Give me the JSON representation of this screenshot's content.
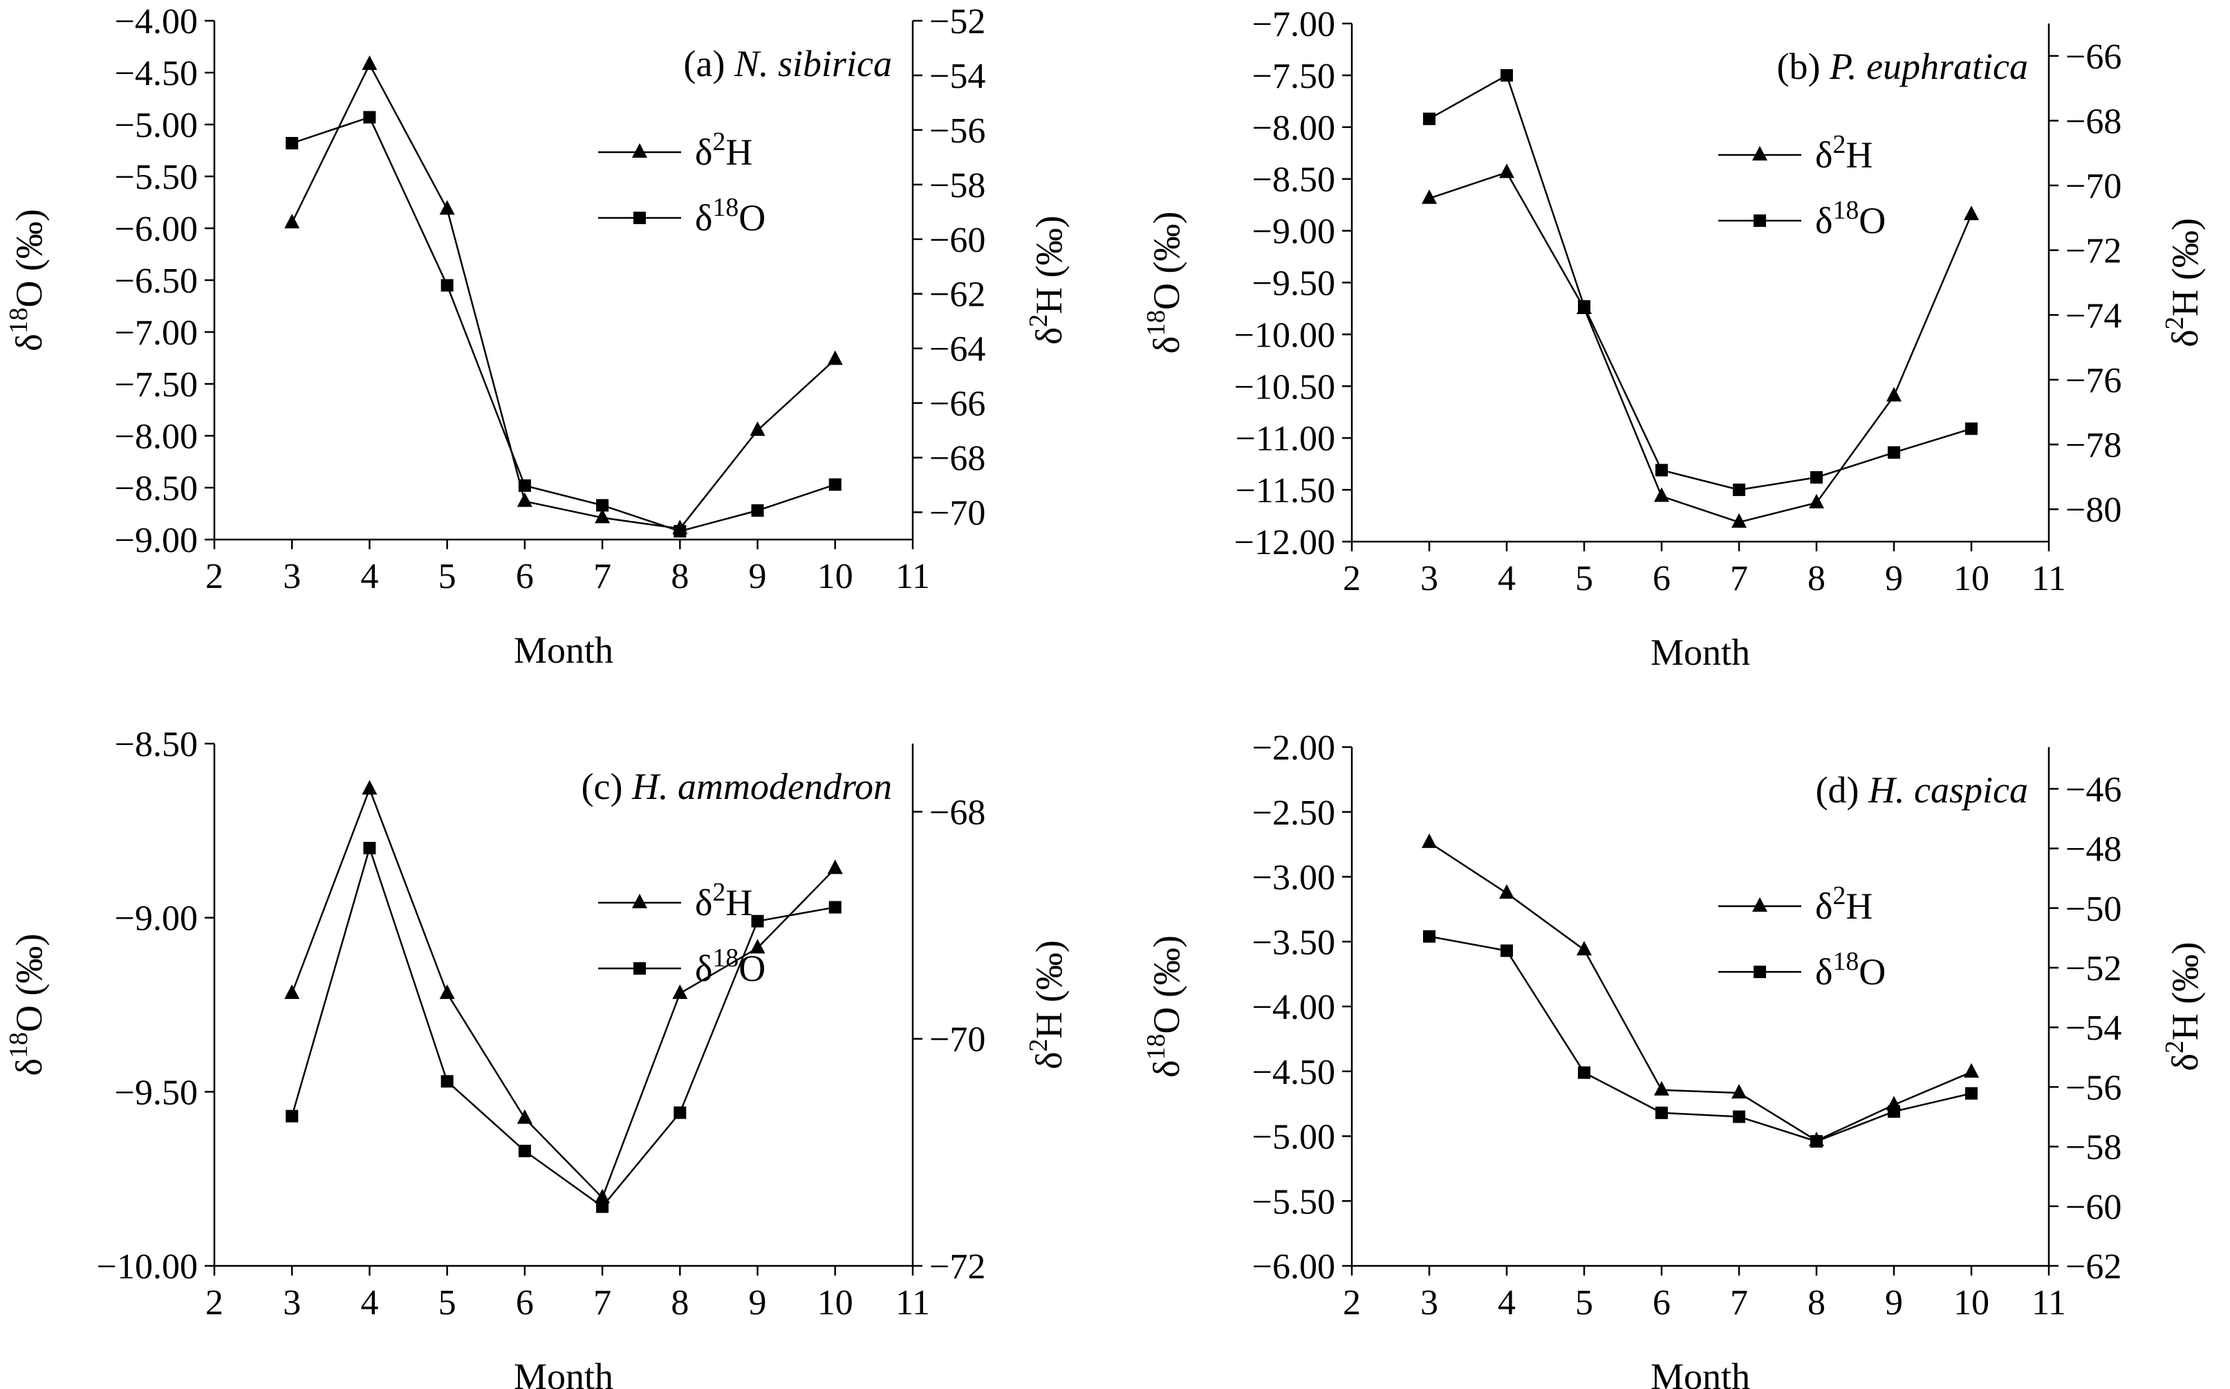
{
  "chart_data": [
    {
      "type": "line",
      "panel_label": "(a)",
      "species": "N. sibirica",
      "xlabel": "Month",
      "ylabel_left": "δ18O (‰)",
      "ylabel_right": "δ2H (‰)",
      "x": [
        3,
        4,
        5,
        6,
        7,
        8,
        9,
        10
      ],
      "xlim": [
        2,
        11
      ],
      "xticks": [
        2,
        3,
        4,
        5,
        6,
        7,
        8,
        9,
        10,
        11
      ],
      "ylim_left": [
        -9.0,
        -4.0
      ],
      "yticks_left": [
        "-4.00",
        "-4.50",
        "-5.00",
        "-5.50",
        "-6.00",
        "-6.50",
        "-7.00",
        "-7.50",
        "-8.00",
        "-8.50",
        "-9.00"
      ],
      "ylim_right": [
        -71,
        -52
      ],
      "yticks_right": [
        "-52",
        "-54",
        "-56",
        "-58",
        "-60",
        "-62",
        "-64",
        "-66",
        "-68",
        "-70"
      ],
      "series": [
        {
          "name": "δ2H",
          "marker": "triangle",
          "axis": "right",
          "values": [
            -59.4,
            -53.6,
            -58.9,
            -69.6,
            -70.2,
            -70.6,
            -67.0,
            -64.4
          ]
        },
        {
          "name": "δ18O",
          "marker": "square",
          "axis": "left",
          "values": [
            -5.18,
            -4.93,
            -6.55,
            -8.48,
            -8.67,
            -8.92,
            -8.72,
            -8.47
          ]
        }
      ]
    },
    {
      "type": "line",
      "panel_label": "(b)",
      "species": "P. euphratica",
      "xlabel": "Month",
      "ylabel_left": "δ18O (‰)",
      "ylabel_right": "δ2H (‰)",
      "x": [
        3,
        4,
        5,
        6,
        7,
        8,
        9,
        10
      ],
      "xlim": [
        2,
        11
      ],
      "xticks": [
        2,
        3,
        4,
        5,
        6,
        7,
        8,
        9,
        10,
        11
      ],
      "ylim_left": [
        -12.0,
        -7.0
      ],
      "yticks_left": [
        "-7.00",
        "-7.50",
        "-8.00",
        "-8.50",
        "-9.00",
        "-9.50",
        "-10.00",
        "-10.50",
        "-11.00",
        "-11.50",
        "-12.00"
      ],
      "ylim_right": [
        -81,
        -65
      ],
      "yticks_right": [
        "-66",
        "-68",
        "-70",
        "-72",
        "-74",
        "-76",
        "-78",
        "-80"
      ],
      "series": [
        {
          "name": "δ2H",
          "marker": "triangle",
          "axis": "right",
          "values": [
            -70.4,
            -69.6,
            -73.8,
            -79.6,
            -80.4,
            -79.8,
            -76.5,
            -70.9
          ]
        },
        {
          "name": "δ18O",
          "marker": "square",
          "axis": "left",
          "values": [
            -7.92,
            -7.5,
            -9.73,
            -11.31,
            -11.5,
            -11.38,
            -11.14,
            -10.91
          ]
        }
      ]
    },
    {
      "type": "line",
      "panel_label": "(c)",
      "species": "H. ammodendron",
      "xlabel": "Month",
      "ylabel_left": "δ18O (‰)",
      "ylabel_right": "δ2H (‰)",
      "x": [
        3,
        4,
        5,
        6,
        7,
        8,
        9,
        10
      ],
      "xlim": [
        2,
        11
      ],
      "xticks": [
        2,
        3,
        4,
        5,
        6,
        7,
        8,
        9,
        10,
        11
      ],
      "ylim_left": [
        -10.0,
        -8.5
      ],
      "yticks_left": [
        "-8.50",
        "-9.00",
        "-9.50",
        "-10.00"
      ],
      "ylim_right": [
        -72,
        -67.4
      ],
      "yticks_right": [
        "-68",
        "-70",
        "-72"
      ],
      "series": [
        {
          "name": "δ2H",
          "marker": "triangle",
          "axis": "right",
          "values": [
            -69.6,
            -67.8,
            -69.6,
            -70.7,
            -71.4,
            -69.6,
            -69.2,
            -68.5
          ]
        },
        {
          "name": "δ18O",
          "marker": "square",
          "axis": "left",
          "values": [
            -9.57,
            -8.8,
            -9.47,
            -9.67,
            -9.83,
            -9.56,
            -9.01,
            -8.97
          ]
        }
      ]
    },
    {
      "type": "line",
      "panel_label": "(d)",
      "species": "H. caspica",
      "xlabel": "Month",
      "ylabel_left": "δ18O (‰)",
      "ylabel_right": "δ2H (‰)",
      "x": [
        3,
        4,
        5,
        6,
        7,
        8,
        9,
        10
      ],
      "xlim": [
        2,
        11
      ],
      "xticks": [
        2,
        3,
        4,
        5,
        6,
        7,
        8,
        9,
        10,
        11
      ],
      "ylim_left": [
        -6.0,
        -2.0
      ],
      "yticks_left": [
        "-2.00",
        "-2.50",
        "-3.00",
        "-3.50",
        "-4.00",
        "-4.50",
        "-5.00",
        "-5.50",
        "-6.00"
      ],
      "ylim_right": [
        -62,
        -44.6
      ],
      "yticks_right": [
        "-46",
        "-48",
        "-50",
        "-52",
        "-54",
        "-56",
        "-58",
        "-60",
        "-62"
      ],
      "series": [
        {
          "name": "δ2H",
          "marker": "triangle",
          "axis": "right",
          "values": [
            -47.8,
            -49.5,
            -51.4,
            -56.1,
            -56.2,
            -57.8,
            -56.6,
            -55.5
          ]
        },
        {
          "name": "δ18O",
          "marker": "square",
          "axis": "left",
          "values": [
            -3.46,
            -3.57,
            -4.51,
            -4.82,
            -4.85,
            -5.04,
            -4.81,
            -4.67
          ]
        }
      ]
    }
  ]
}
